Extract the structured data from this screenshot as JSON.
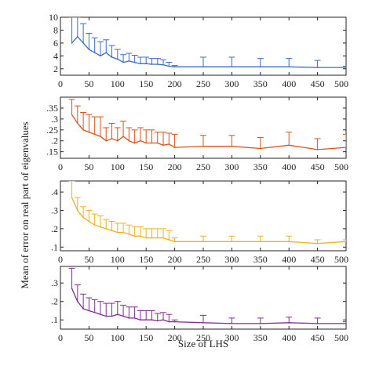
{
  "chart_data": {
    "type": "line",
    "error_bars": true,
    "xlabel": "Size of LHS",
    "ylabel": "Mean of error on real part of eigenvalues",
    "x_ticks": [
      0,
      50,
      100,
      150,
      200,
      250,
      300,
      350,
      400,
      450,
      500
    ],
    "x": [
      20,
      30,
      40,
      50,
      60,
      70,
      80,
      90,
      100,
      110,
      120,
      130,
      140,
      150,
      160,
      170,
      180,
      190,
      200,
      250,
      300,
      350,
      400,
      450,
      500
    ],
    "xlim": [
      0,
      500
    ],
    "panels": [
      {
        "color": "#3b6bc4",
        "ylim": [
          1,
          10
        ],
        "y_ticks": [
          2,
          4,
          6,
          8,
          10
        ],
        "values": [
          6.0,
          7.0,
          6.0,
          5.0,
          4.5,
          4.0,
          4.5,
          3.8,
          3.5,
          3.0,
          3.2,
          3.0,
          2.8,
          2.8,
          2.7,
          2.7,
          2.6,
          2.4,
          2.3,
          2.3,
          2.3,
          2.3,
          2.3,
          2.2,
          2.2
        ],
        "errors": [
          4.0,
          3.0,
          3.0,
          2.5,
          2.3,
          2.2,
          2.0,
          1.8,
          1.5,
          1.2,
          1.2,
          1.1,
          1.0,
          1.0,
          0.9,
          0.9,
          0.8,
          0.6,
          0.2,
          1.5,
          1.5,
          1.3,
          1.3,
          1.1,
          0.2
        ]
      },
      {
        "color": "#d95319",
        "ylim": [
          0.12,
          0.4
        ],
        "y_ticks": [
          0.15,
          0.2,
          0.25,
          0.3,
          0.35
        ],
        "values": [
          0.32,
          0.28,
          0.25,
          0.24,
          0.23,
          0.22,
          0.2,
          0.21,
          0.2,
          0.22,
          0.2,
          0.19,
          0.2,
          0.19,
          0.19,
          0.19,
          0.18,
          0.185,
          0.17,
          0.175,
          0.175,
          0.165,
          0.18,
          0.16,
          0.17
        ],
        "errors": [
          0.07,
          0.08,
          0.08,
          0.08,
          0.08,
          0.09,
          0.06,
          0.07,
          0.06,
          0.07,
          0.06,
          0.06,
          0.06,
          0.06,
          0.06,
          0.05,
          0.06,
          0.05,
          0.06,
          0.05,
          0.05,
          0.05,
          0.06,
          0.05,
          0.06
        ]
      },
      {
        "color": "#edb120",
        "ylim": [
          0.08,
          0.46
        ],
        "y_ticks": [
          0.1,
          0.2,
          0.3,
          0.4
        ],
        "values": [
          0.37,
          0.3,
          0.26,
          0.24,
          0.22,
          0.21,
          0.2,
          0.19,
          0.18,
          0.18,
          0.17,
          0.16,
          0.16,
          0.15,
          0.15,
          0.15,
          0.15,
          0.14,
          0.13,
          0.13,
          0.13,
          0.13,
          0.13,
          0.12,
          0.13
        ],
        "errors": [
          0.09,
          0.07,
          0.06,
          0.06,
          0.06,
          0.06,
          0.05,
          0.05,
          0.05,
          0.05,
          0.05,
          0.05,
          0.05,
          0.05,
          0.05,
          0.05,
          0.05,
          0.05,
          0.02,
          0.03,
          0.03,
          0.03,
          0.03,
          0.02,
          0.01
        ]
      },
      {
        "color": "#7e2f8e",
        "ylim": [
          0.05,
          0.39
        ],
        "y_ticks": [
          0.1,
          0.2,
          0.3
        ],
        "values": [
          0.27,
          0.2,
          0.16,
          0.15,
          0.14,
          0.13,
          0.12,
          0.12,
          0.13,
          0.12,
          0.11,
          0.11,
          0.1,
          0.1,
          0.1,
          0.095,
          0.1,
          0.09,
          0.09,
          0.085,
          0.08,
          0.08,
          0.085,
          0.08,
          0.08
        ],
        "errors": [
          0.11,
          0.09,
          0.08,
          0.07,
          0.07,
          0.07,
          0.07,
          0.07,
          0.07,
          0.06,
          0.06,
          0.06,
          0.05,
          0.05,
          0.05,
          0.04,
          0.04,
          0.04,
          0.01,
          0.04,
          0.03,
          0.03,
          0.03,
          0.03,
          0.01
        ]
      }
    ]
  }
}
